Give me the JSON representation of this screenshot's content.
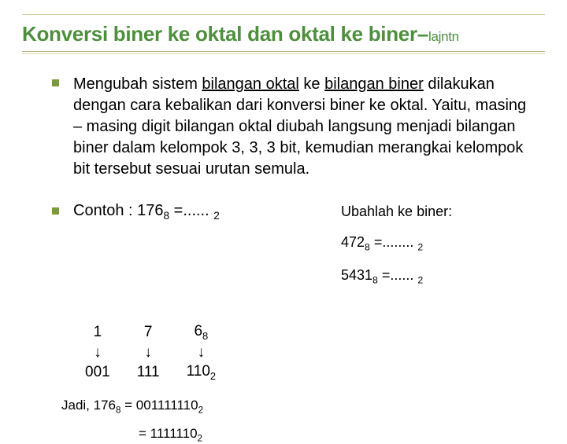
{
  "title_main": "Konversi biner ke oktal dan oktal ke biner",
  "title_dash": "–",
  "title_suffix": "lajntn",
  "paragraph": {
    "pre": "Mengubah sistem ",
    "u1": "bilangan oktal",
    "mid1": " ke ",
    "u2": "bilangan biner",
    "rest": " dilakukan dengan cara kebalikan dari konversi biner ke oktal. Yaitu, masing – masing digit bilangan oktal diubah langsung menjadi bilangan biner dalam kelompok 3, 3, 3 bit, kemudian merangkai kelompok bit tersebut sesuai urutan semula."
  },
  "contoh": {
    "label": "Contoh : 176",
    "sub1": "8",
    "mid": " =...... ",
    "sub2": "2"
  },
  "exercise": {
    "header": "Ubahlah ke biner:",
    "line1_a": "472",
    "line1_sub1": "8",
    "line1_mid": "   =........ ",
    "line1_sub2": "2",
    "line2_a": "5431",
    "line2_sub1": "8",
    "line2_mid": " =...... ",
    "line2_sub2": "2"
  },
  "table": {
    "r1c1": "1",
    "r1c2": "7",
    "r1c3_a": "6",
    "r1c3_sub": "8",
    "r3c1": "001",
    "r3c2": "111",
    "r3c3_a": "110",
    "r3c3_sub": "2"
  },
  "jadi": {
    "pre": "Jadi, 176",
    "sub1": "8",
    "mid": " = 001111110",
    "sub2": "2",
    "eq2": "= 1111110",
    "sub3": "2"
  }
}
